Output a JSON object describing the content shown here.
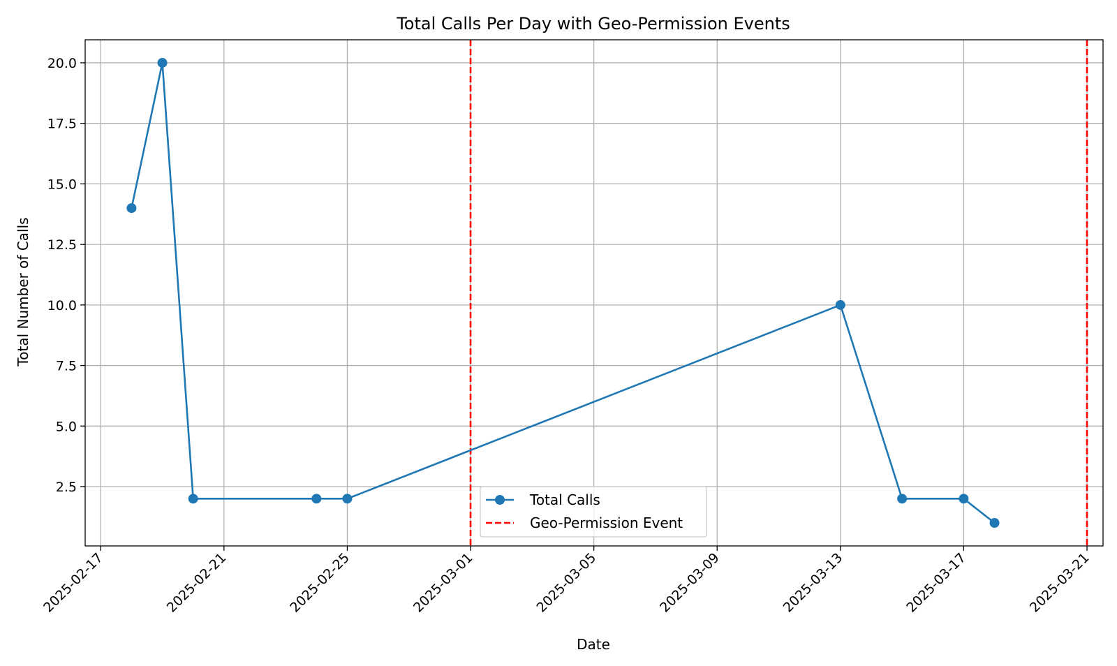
{
  "chart_data": {
    "type": "line",
    "title": "Total Calls Per Day with Geo-Permission Events",
    "xlabel": "Date",
    "ylabel": "Total Number of Calls",
    "x_type": "date",
    "xlim": [
      "2025-02-16T11:54",
      "2025-03-21T12:30"
    ],
    "ylim": [
      0.05,
      20.95
    ],
    "x_ticks": [
      "2025-02-17",
      "2025-02-21",
      "2025-02-25",
      "2025-03-01",
      "2025-03-05",
      "2025-03-09",
      "2025-03-13",
      "2025-03-17",
      "2025-03-21"
    ],
    "y_ticks": [
      2.5,
      5.0,
      7.5,
      10.0,
      12.5,
      15.0,
      17.5,
      20.0
    ],
    "y_tick_labels": [
      "2.5",
      "5.0",
      "7.5",
      "10.0",
      "12.5",
      "15.0",
      "17.5",
      "20.0"
    ],
    "grid": true,
    "series": [
      {
        "name": "Total Calls",
        "color": "#1f77b4",
        "marker": "circle",
        "x": [
          "2025-02-18",
          "2025-02-19",
          "2025-02-20",
          "2025-02-24",
          "2025-02-25",
          "2025-03-13",
          "2025-03-15",
          "2025-03-17",
          "2025-03-18"
        ],
        "y": [
          14,
          20,
          2,
          2,
          2,
          10,
          2,
          2,
          1
        ]
      }
    ],
    "event_lines": {
      "name": "Geo-Permission Event",
      "color": "#ff0000",
      "style": "dashed",
      "x": [
        "2025-03-01",
        "2025-03-21"
      ]
    },
    "legend": {
      "position": "bottom-center",
      "entries": [
        "Total Calls",
        "Geo-Permission Event"
      ]
    }
  }
}
